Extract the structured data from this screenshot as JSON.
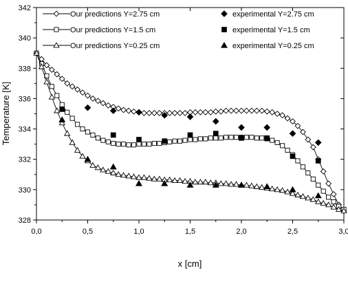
{
  "chart_data": {
    "type": "scatter",
    "xlabel": "x [cm]",
    "ylabel": "Temperature [K]",
    "xlim": [
      0,
      3
    ],
    "ylim": [
      328,
      342
    ],
    "xticks": [
      0,
      0.5,
      1.0,
      1.5,
      2.0,
      2.5,
      3.0
    ],
    "xtick_labels": [
      "0,0",
      "0,5",
      "1,0",
      "1,5",
      "2,0",
      "2,5",
      "3,0"
    ],
    "yticks": [
      328,
      330,
      332,
      334,
      336,
      338,
      340,
      342
    ],
    "ytick_labels": [
      "328",
      "330",
      "332",
      "334",
      "336",
      "338",
      "340",
      "342"
    ],
    "grid": false,
    "legend_position": "top",
    "series": [
      {
        "name": "Our predictions Y=2.75 cm",
        "kind": "line",
        "marker": "diamond-open",
        "x": [
          0.0,
          0.05,
          0.1,
          0.15,
          0.2,
          0.25,
          0.3,
          0.35,
          0.4,
          0.45,
          0.5,
          0.55,
          0.6,
          0.65,
          0.7,
          0.75,
          0.8,
          0.85,
          0.9,
          0.95,
          1.0,
          1.05,
          1.1,
          1.15,
          1.2,
          1.25,
          1.3,
          1.35,
          1.4,
          1.45,
          1.5,
          1.55,
          1.6,
          1.65,
          1.7,
          1.75,
          1.8,
          1.85,
          1.9,
          1.95,
          2.0,
          2.05,
          2.1,
          2.15,
          2.2,
          2.25,
          2.3,
          2.35,
          2.4,
          2.45,
          2.5,
          2.55,
          2.6,
          2.65,
          2.7,
          2.75,
          2.8,
          2.85,
          2.9,
          2.95,
          3.0
        ],
        "y": [
          339.0,
          338.6,
          338.2,
          337.9,
          337.6,
          337.3,
          337.0,
          336.8,
          336.6,
          336.4,
          336.2,
          336.0,
          335.85,
          335.7,
          335.55,
          335.45,
          335.35,
          335.25,
          335.2,
          335.15,
          335.1,
          335.05,
          335.05,
          335.05,
          335.05,
          335.05,
          335.05,
          335.05,
          335.05,
          335.05,
          335.1,
          335.1,
          335.1,
          335.1,
          335.1,
          335.15,
          335.15,
          335.2,
          335.2,
          335.2,
          335.2,
          335.2,
          335.2,
          335.2,
          335.2,
          335.15,
          335.1,
          335.0,
          334.9,
          334.7,
          334.5,
          334.2,
          333.8,
          333.3,
          332.8,
          332.0,
          331.2,
          330.4,
          329.7,
          329.0,
          328.6
        ]
      },
      {
        "name": "Our predictions Y=1.5 cm",
        "kind": "line",
        "marker": "square-open",
        "x": [
          0.0,
          0.05,
          0.1,
          0.15,
          0.2,
          0.25,
          0.3,
          0.35,
          0.4,
          0.45,
          0.5,
          0.55,
          0.6,
          0.65,
          0.7,
          0.75,
          0.8,
          0.85,
          0.9,
          0.95,
          1.0,
          1.05,
          1.1,
          1.15,
          1.2,
          1.25,
          1.3,
          1.35,
          1.4,
          1.45,
          1.5,
          1.55,
          1.6,
          1.65,
          1.7,
          1.75,
          1.8,
          1.85,
          1.9,
          1.95,
          2.0,
          2.05,
          2.1,
          2.15,
          2.2,
          2.25,
          2.3,
          2.35,
          2.4,
          2.45,
          2.5,
          2.55,
          2.6,
          2.65,
          2.7,
          2.75,
          2.8,
          2.85,
          2.9,
          2.95,
          3.0
        ],
        "y": [
          339.0,
          338.3,
          337.5,
          336.8,
          336.2,
          335.6,
          335.1,
          334.7,
          334.3,
          334.0,
          333.8,
          333.6,
          333.4,
          333.25,
          333.15,
          333.05,
          333.0,
          333.0,
          332.95,
          332.95,
          333.0,
          333.0,
          333.0,
          333.05,
          333.05,
          333.1,
          333.15,
          333.2,
          333.2,
          333.25,
          333.3,
          333.3,
          333.35,
          333.35,
          333.4,
          333.4,
          333.4,
          333.45,
          333.45,
          333.45,
          333.45,
          333.45,
          333.45,
          333.4,
          333.4,
          333.35,
          333.25,
          333.1,
          332.9,
          332.6,
          332.3,
          331.9,
          331.5,
          331.1,
          330.7,
          330.3,
          329.9,
          329.5,
          329.2,
          328.9,
          328.7
        ]
      },
      {
        "name": "Our predictions Y=0.25 cm",
        "kind": "line",
        "marker": "triangle-open",
        "x": [
          0.0,
          0.05,
          0.1,
          0.15,
          0.2,
          0.25,
          0.3,
          0.35,
          0.4,
          0.45,
          0.5,
          0.55,
          0.6,
          0.65,
          0.7,
          0.75,
          0.8,
          0.85,
          0.9,
          0.95,
          1.0,
          1.05,
          1.1,
          1.15,
          1.2,
          1.25,
          1.3,
          1.35,
          1.4,
          1.45,
          1.5,
          1.55,
          1.6,
          1.65,
          1.7,
          1.75,
          1.8,
          1.85,
          1.9,
          1.95,
          2.0,
          2.05,
          2.1,
          2.15,
          2.2,
          2.25,
          2.3,
          2.35,
          2.4,
          2.45,
          2.5,
          2.55,
          2.6,
          2.65,
          2.7,
          2.75,
          2.8,
          2.85,
          2.9,
          2.95,
          3.0
        ],
        "y": [
          339.0,
          338.1,
          337.1,
          336.1,
          335.2,
          334.4,
          333.7,
          333.1,
          332.6,
          332.2,
          331.9,
          331.6,
          331.45,
          331.3,
          331.2,
          331.1,
          331.0,
          330.95,
          330.9,
          330.85,
          330.8,
          330.8,
          330.75,
          330.7,
          330.7,
          330.65,
          330.65,
          330.6,
          330.6,
          330.55,
          330.55,
          330.5,
          330.5,
          330.5,
          330.45,
          330.45,
          330.4,
          330.4,
          330.35,
          330.35,
          330.3,
          330.3,
          330.25,
          330.2,
          330.15,
          330.1,
          330.05,
          330.0,
          329.95,
          329.85,
          329.75,
          329.65,
          329.55,
          329.45,
          329.35,
          329.2,
          329.1,
          329.0,
          328.85,
          328.7,
          328.6
        ]
      },
      {
        "name": "experimental  Y=2.75 cm",
        "kind": "scatter",
        "marker": "diamond-filled",
        "x": [
          0.5,
          0.75,
          1.0,
          1.25,
          1.5,
          1.75,
          2.0,
          2.25,
          2.5,
          2.75
        ],
        "y": [
          335.4,
          335.2,
          335.1,
          334.9,
          334.8,
          334.5,
          334.1,
          334.1,
          333.7,
          333.1
        ]
      },
      {
        "name": "experimental Y=1.5 cm",
        "kind": "scatter",
        "marker": "square-filled",
        "x": [
          0.25,
          0.75,
          1.0,
          1.25,
          1.5,
          1.75,
          2.0,
          2.25,
          2.5,
          2.75
        ],
        "y": [
          335.3,
          333.6,
          333.3,
          333.2,
          333.6,
          333.7,
          333.4,
          333.4,
          332.2,
          331.9
        ]
      },
      {
        "name": " experimental Y=0.25 cm",
        "kind": "scatter",
        "marker": "triangle-filled",
        "x": [
          0.25,
          0.5,
          0.75,
          1.0,
          1.25,
          1.5,
          1.75,
          2.0,
          2.25,
          2.5,
          2.75
        ],
        "y": [
          334.6,
          332.0,
          331.5,
          330.4,
          330.4,
          330.3,
          330.3,
          330.3,
          330.2,
          330.0,
          329.6
        ]
      }
    ]
  }
}
